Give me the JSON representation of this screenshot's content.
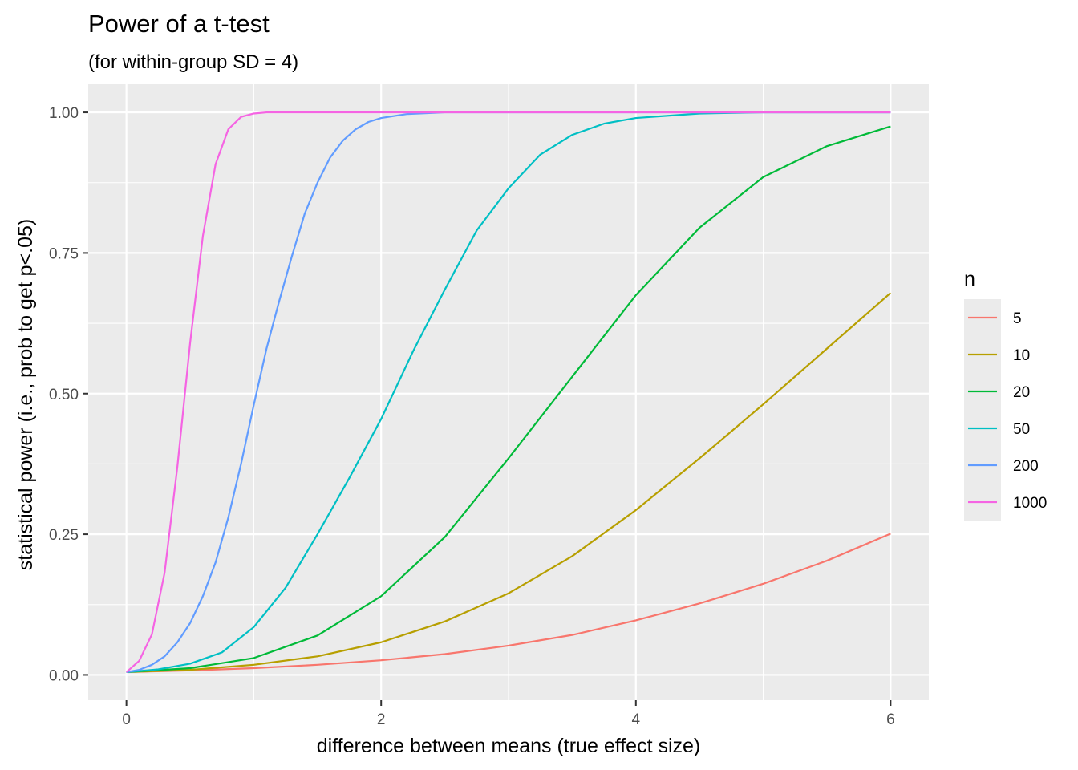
{
  "chart_data": {
    "type": "line",
    "title": "Power of a t-test",
    "subtitle": "(for within-group SD = 4)",
    "xlabel": "difference between means (true effect size)",
    "ylabel": "statistical power (i.e., prob to get p<.05)",
    "xlim": [
      -0.3,
      6.3
    ],
    "ylim": [
      -0.045,
      1.05
    ],
    "x_ticks": [
      0,
      2,
      4,
      6
    ],
    "x_tick_labels": [
      "0",
      "2",
      "4",
      "6"
    ],
    "y_ticks": [
      0,
      0.25,
      0.5,
      0.75,
      1
    ],
    "y_tick_labels": [
      "0.00",
      "0.25",
      "0.50",
      "0.75",
      "1.00"
    ],
    "grid": true,
    "legend": {
      "title": "n",
      "placement": "right"
    },
    "series": [
      {
        "name": "5",
        "color": "#F8766D",
        "x": [
          0,
          0.5,
          1,
          1.5,
          2,
          2.5,
          3,
          3.5,
          4,
          4.5,
          5,
          5.5,
          6
        ],
        "y": [
          0.005,
          0.008,
          0.012,
          0.018,
          0.026,
          0.037,
          0.052,
          0.071,
          0.097,
          0.127,
          0.162,
          0.203,
          0.251
        ]
      },
      {
        "name": "10",
        "color": "#B79F00",
        "x": [
          0,
          0.5,
          1,
          1.5,
          2,
          2.5,
          3,
          3.5,
          4,
          4.5,
          5,
          5.5,
          6
        ],
        "y": [
          0.005,
          0.009,
          0.018,
          0.033,
          0.058,
          0.095,
          0.145,
          0.211,
          0.293,
          0.385,
          0.481,
          0.58,
          0.679
        ]
      },
      {
        "name": "20",
        "color": "#00BA38",
        "x": [
          0,
          0.5,
          1,
          1.5,
          2,
          2.5,
          3,
          3.5,
          4,
          4.5,
          5,
          5.5,
          6
        ],
        "y": [
          0.005,
          0.012,
          0.03,
          0.07,
          0.14,
          0.245,
          0.385,
          0.53,
          0.675,
          0.795,
          0.885,
          0.94,
          0.975
        ]
      },
      {
        "name": "50",
        "color": "#00BFC4",
        "x": [
          0,
          0.25,
          0.5,
          0.75,
          1,
          1.25,
          1.5,
          1.75,
          2,
          2.25,
          2.5,
          2.75,
          3,
          3.25,
          3.5,
          3.75,
          4,
          4.5,
          5,
          6
        ],
        "y": [
          0.005,
          0.01,
          0.02,
          0.04,
          0.085,
          0.155,
          0.25,
          0.35,
          0.455,
          0.575,
          0.685,
          0.79,
          0.865,
          0.925,
          0.96,
          0.98,
          0.99,
          0.998,
          1.0,
          1.0
        ]
      },
      {
        "name": "200",
        "color": "#619CFF",
        "x": [
          0,
          0.1,
          0.2,
          0.3,
          0.4,
          0.5,
          0.6,
          0.7,
          0.8,
          0.9,
          1.0,
          1.1,
          1.2,
          1.3,
          1.4,
          1.5,
          1.6,
          1.7,
          1.8,
          1.9,
          2.0,
          2.2,
          2.5,
          6
        ],
        "y": [
          0.005,
          0.009,
          0.018,
          0.033,
          0.058,
          0.092,
          0.14,
          0.2,
          0.28,
          0.375,
          0.48,
          0.58,
          0.665,
          0.745,
          0.82,
          0.875,
          0.92,
          0.95,
          0.97,
          0.983,
          0.99,
          0.997,
          1.0,
          1.0
        ]
      },
      {
        "name": "1000",
        "color": "#F564E3",
        "x": [
          0,
          0.1,
          0.2,
          0.3,
          0.4,
          0.5,
          0.6,
          0.7,
          0.8,
          0.9,
          1.0,
          1.1,
          1.2,
          6
        ],
        "y": [
          0.005,
          0.025,
          0.072,
          0.182,
          0.37,
          0.59,
          0.78,
          0.908,
          0.97,
          0.992,
          0.998,
          1.0,
          1.0,
          1.0
        ]
      }
    ]
  }
}
